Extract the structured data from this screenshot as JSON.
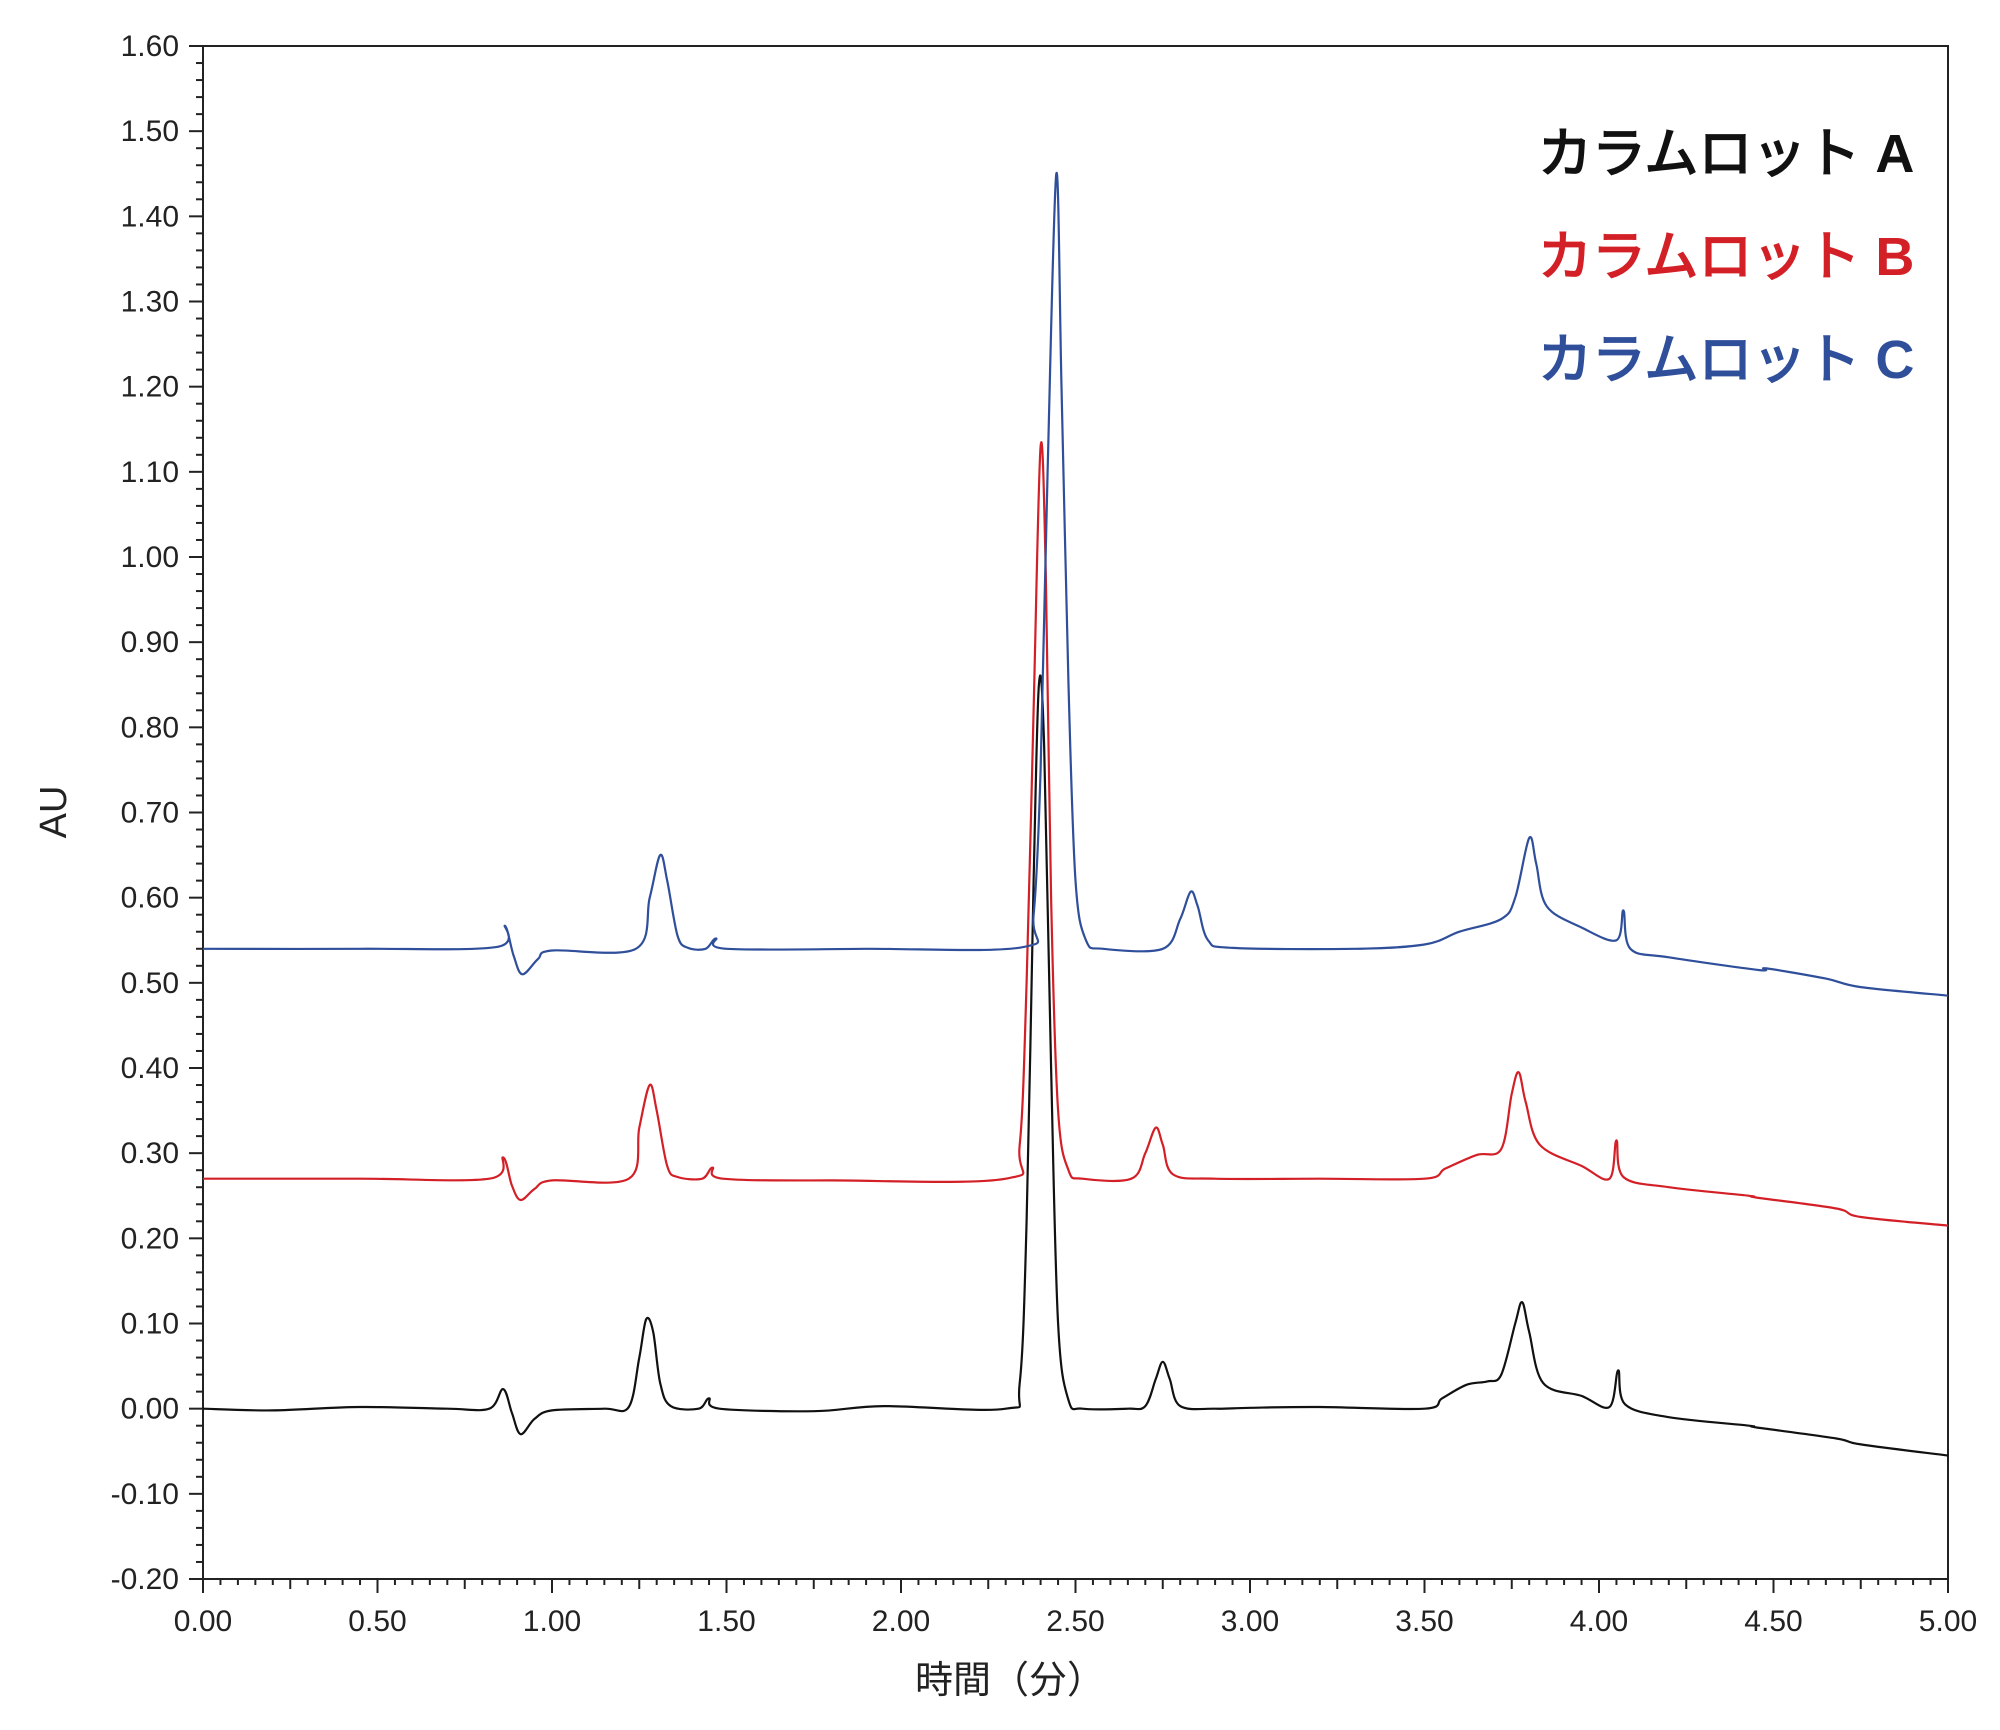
{
  "chart_data": {
    "type": "line",
    "xlabel": "時間（分）",
    "ylabel": "AU",
    "xlim": [
      0,
      5
    ],
    "ylim": [
      -0.2,
      1.6
    ],
    "x_ticks": [
      "0.00",
      "0.50",
      "1.00",
      "1.50",
      "2.00",
      "2.50",
      "3.00",
      "3.50",
      "4.00",
      "4.50",
      "5.00"
    ],
    "y_ticks": [
      "-0.20",
      "-0.10",
      "0.00",
      "0.10",
      "0.20",
      "0.30",
      "0.40",
      "0.50",
      "0.60",
      "0.70",
      "0.80",
      "0.90",
      "1.00",
      "1.10",
      "1.20",
      "1.30",
      "1.40",
      "1.50",
      "1.60"
    ],
    "grid": false,
    "legend_position": "top-right",
    "series": [
      {
        "name": "カラムロット A",
        "color": "#111111",
        "points": [
          [
            0.0,
            0.0
          ],
          [
            0.2,
            -0.002
          ],
          [
            0.45,
            0.002
          ],
          [
            0.7,
            0.0
          ],
          [
            0.82,
            0.0
          ],
          [
            0.86,
            0.023
          ],
          [
            0.885,
            -0.005
          ],
          [
            0.91,
            -0.03
          ],
          [
            0.95,
            -0.012
          ],
          [
            1.0,
            -0.002
          ],
          [
            1.15,
            0.0
          ],
          [
            1.22,
            0.002
          ],
          [
            1.25,
            0.06
          ],
          [
            1.27,
            0.105
          ],
          [
            1.29,
            0.09
          ],
          [
            1.31,
            0.03
          ],
          [
            1.34,
            0.003
          ],
          [
            1.42,
            0.0
          ],
          [
            1.45,
            0.012
          ],
          [
            1.48,
            0.0
          ],
          [
            1.75,
            -0.003
          ],
          [
            1.95,
            0.003
          ],
          [
            2.3,
            0.0
          ],
          [
            2.34,
            0.03
          ],
          [
            2.36,
            0.22
          ],
          [
            2.38,
            0.62
          ],
          [
            2.395,
            0.85
          ],
          [
            2.41,
            0.78
          ],
          [
            2.43,
            0.4
          ],
          [
            2.45,
            0.1
          ],
          [
            2.48,
            0.01
          ],
          [
            2.52,
            0.0
          ],
          [
            2.65,
            0.0
          ],
          [
            2.7,
            0.003
          ],
          [
            2.73,
            0.035
          ],
          [
            2.75,
            0.055
          ],
          [
            2.77,
            0.035
          ],
          [
            2.8,
            0.003
          ],
          [
            2.9,
            0.0
          ],
          [
            3.0,
            0.001
          ],
          [
            3.2,
            0.002
          ],
          [
            3.5,
            0.0
          ],
          [
            3.55,
            0.012
          ],
          [
            3.62,
            0.028
          ],
          [
            3.68,
            0.032
          ],
          [
            3.72,
            0.04
          ],
          [
            3.76,
            0.1
          ],
          [
            3.78,
            0.125
          ],
          [
            3.8,
            0.09
          ],
          [
            3.84,
            0.03
          ],
          [
            3.95,
            0.015
          ],
          [
            4.03,
            0.002
          ],
          [
            4.055,
            0.045
          ],
          [
            4.075,
            0.005
          ],
          [
            4.2,
            -0.01
          ],
          [
            4.43,
            -0.02
          ],
          [
            4.45,
            -0.022
          ],
          [
            4.68,
            -0.035
          ],
          [
            4.75,
            -0.042
          ],
          [
            5.0,
            -0.055
          ]
        ]
      },
      {
        "name": "カラムロット B",
        "color": "#d32027",
        "points": [
          [
            0.0,
            0.27
          ],
          [
            0.45,
            0.27
          ],
          [
            0.82,
            0.27
          ],
          [
            0.86,
            0.295
          ],
          [
            0.885,
            0.262
          ],
          [
            0.91,
            0.245
          ],
          [
            0.95,
            0.258
          ],
          [
            1.0,
            0.268
          ],
          [
            1.22,
            0.27
          ],
          [
            1.25,
            0.33
          ],
          [
            1.28,
            0.38
          ],
          [
            1.3,
            0.35
          ],
          [
            1.33,
            0.285
          ],
          [
            1.36,
            0.272
          ],
          [
            1.43,
            0.27
          ],
          [
            1.46,
            0.283
          ],
          [
            1.49,
            0.27
          ],
          [
            1.8,
            0.268
          ],
          [
            2.3,
            0.27
          ],
          [
            2.34,
            0.31
          ],
          [
            2.36,
            0.5
          ],
          [
            2.38,
            0.82
          ],
          [
            2.4,
            1.13
          ],
          [
            2.415,
            0.98
          ],
          [
            2.43,
            0.6
          ],
          [
            2.45,
            0.35
          ],
          [
            2.48,
            0.28
          ],
          [
            2.52,
            0.27
          ],
          [
            2.66,
            0.27
          ],
          [
            2.7,
            0.3
          ],
          [
            2.73,
            0.33
          ],
          [
            2.75,
            0.31
          ],
          [
            2.78,
            0.275
          ],
          [
            2.9,
            0.27
          ],
          [
            3.2,
            0.27
          ],
          [
            3.5,
            0.27
          ],
          [
            3.56,
            0.282
          ],
          [
            3.65,
            0.298
          ],
          [
            3.72,
            0.305
          ],
          [
            3.75,
            0.37
          ],
          [
            3.77,
            0.395
          ],
          [
            3.79,
            0.36
          ],
          [
            3.83,
            0.31
          ],
          [
            3.95,
            0.285
          ],
          [
            4.03,
            0.27
          ],
          [
            4.05,
            0.315
          ],
          [
            4.07,
            0.272
          ],
          [
            4.2,
            0.26
          ],
          [
            4.43,
            0.25
          ],
          [
            4.45,
            0.248
          ],
          [
            4.68,
            0.235
          ],
          [
            4.75,
            0.225
          ],
          [
            5.0,
            0.215
          ]
        ]
      },
      {
        "name": "カラムロット C",
        "color": "#2f4f9b",
        "points": [
          [
            0.0,
            0.54
          ],
          [
            0.45,
            0.54
          ],
          [
            0.84,
            0.542
          ],
          [
            0.865,
            0.567
          ],
          [
            0.89,
            0.532
          ],
          [
            0.915,
            0.51
          ],
          [
            0.96,
            0.528
          ],
          [
            1.0,
            0.538
          ],
          [
            1.24,
            0.54
          ],
          [
            1.28,
            0.6
          ],
          [
            1.31,
            0.65
          ],
          [
            1.33,
            0.62
          ],
          [
            1.36,
            0.555
          ],
          [
            1.39,
            0.541
          ],
          [
            1.44,
            0.54
          ],
          [
            1.47,
            0.552
          ],
          [
            1.5,
            0.54
          ],
          [
            1.9,
            0.54
          ],
          [
            2.35,
            0.542
          ],
          [
            2.38,
            0.58
          ],
          [
            2.4,
            0.75
          ],
          [
            2.42,
            1.1
          ],
          [
            2.445,
            1.45
          ],
          [
            2.46,
            1.2
          ],
          [
            2.48,
            0.85
          ],
          [
            2.5,
            0.62
          ],
          [
            2.53,
            0.55
          ],
          [
            2.58,
            0.54
          ],
          [
            2.75,
            0.54
          ],
          [
            2.8,
            0.575
          ],
          [
            2.83,
            0.607
          ],
          [
            2.85,
            0.59
          ],
          [
            2.88,
            0.55
          ],
          [
            2.95,
            0.541
          ],
          [
            3.3,
            0.54
          ],
          [
            3.5,
            0.545
          ],
          [
            3.6,
            0.56
          ],
          [
            3.72,
            0.575
          ],
          [
            3.76,
            0.6
          ],
          [
            3.8,
            0.67
          ],
          [
            3.82,
            0.64
          ],
          [
            3.85,
            0.59
          ],
          [
            3.95,
            0.565
          ],
          [
            4.05,
            0.55
          ],
          [
            4.07,
            0.585
          ],
          [
            4.09,
            0.54
          ],
          [
            4.2,
            0.53
          ],
          [
            4.46,
            0.515
          ],
          [
            4.48,
            0.517
          ],
          [
            4.65,
            0.505
          ],
          [
            4.75,
            0.495
          ],
          [
            5.0,
            0.485
          ]
        ]
      }
    ]
  }
}
